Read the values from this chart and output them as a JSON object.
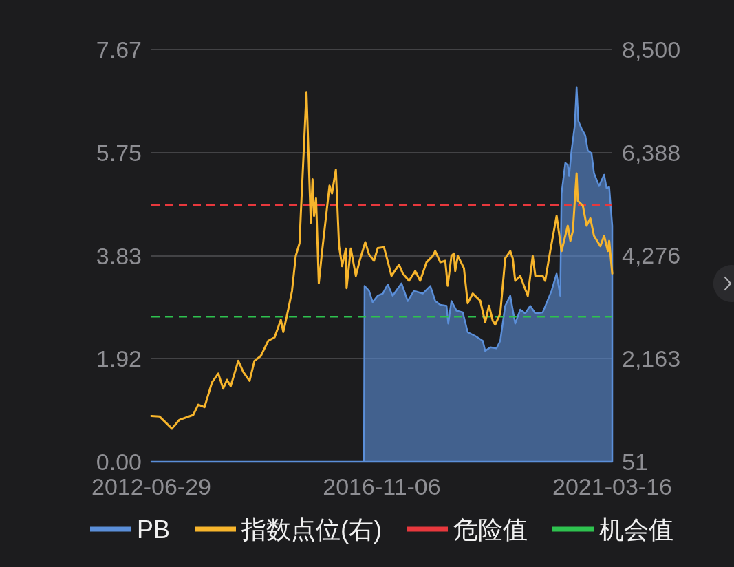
{
  "chart_data": {
    "type": "line",
    "series": [
      {
        "name": "PB",
        "type": "area",
        "color": "#5b8fd9",
        "axis": "y",
        "x": [
          "2012-06-29",
          "2016-07-06",
          "2016-07-10",
          "2016-08-10",
          "2016-09-04",
          "2016-10-09",
          "2016-11-13",
          "2016-12-17",
          "2017-01-20",
          "2017-03-22",
          "2017-05-04",
          "2017-06-16",
          "2017-08-16",
          "2017-10-07",
          "2017-11-10",
          "2017-12-15",
          "2018-01-27",
          "2018-02-08",
          "2018-03-02",
          "2018-04-06",
          "2018-05-19",
          "2018-06-22",
          "2018-08-13",
          "2018-10-04",
          "2018-10-21",
          "2018-11-25",
          "2019-01-07",
          "2019-02-02",
          "2019-03-08",
          "2019-04-12",
          "2019-05-16",
          "2019-06-20",
          "2019-07-24",
          "2019-08-28",
          "2019-10-02",
          "2019-11-22",
          "2019-12-18",
          "2020-01-22",
          "2020-02-26",
          "2020-03-22",
          "2020-03-31",
          "2020-04-26",
          "2020-05-13",
          "2020-05-22",
          "2020-06-08",
          "2020-06-30",
          "2020-07-13",
          "2020-07-25",
          "2020-08-16",
          "2020-09-11",
          "2020-09-28",
          "2020-10-24",
          "2020-11-10",
          "2020-12-15",
          "2021-01-19",
          "2021-02-05",
          "2021-02-23",
          "2021-03-16"
        ],
        "values": [
          0,
          0,
          3.27,
          3.18,
          2.97,
          3.09,
          3.13,
          3.3,
          3.09,
          3.32,
          2.99,
          3.18,
          3.13,
          3.27,
          2.99,
          2.92,
          2.9,
          2.57,
          2.99,
          2.81,
          2.78,
          2.41,
          2.34,
          2.25,
          2.06,
          2.13,
          2.11,
          2.25,
          2.9,
          3.09,
          2.57,
          2.83,
          2.76,
          2.9,
          2.76,
          2.78,
          2.95,
          3.18,
          3.5,
          3.09,
          4.99,
          5.56,
          5.52,
          5.32,
          5.79,
          6.25,
          6.97,
          6.34,
          6.2,
          6.07,
          5.79,
          5.74,
          5.37,
          5.13,
          5.34,
          5.09,
          5.11,
          4.39
        ]
      },
      {
        "name": "指数点位(右)",
        "type": "line",
        "color": "#f7b52c",
        "axis": "y2",
        "x": [
          "2012-06-29",
          "2012-08-24",
          "2012-11-18",
          "2013-01-09",
          "2013-04-14",
          "2013-05-19",
          "2013-07-01",
          "2013-08-22",
          "2013-10-04",
          "2013-11-07",
          "2013-12-03",
          "2013-12-29",
          "2014-02-19",
          "2014-03-26",
          "2014-05-08",
          "2014-06-11",
          "2014-07-25",
          "2014-09-14",
          "2014-10-28",
          "2014-12-10",
          "2014-12-27",
          "2015-01-30",
          "2015-02-25",
          "2015-03-23",
          "2015-04-18",
          "2015-04-27",
          "2015-06-05",
          "2015-07-05",
          "2015-07-17",
          "2015-07-27",
          "2015-08-10",
          "2015-08-29",
          "2015-09-21",
          "2015-11-11",
          "2015-11-28",
          "2015-12-25",
          "2016-01-16",
          "2016-02-06",
          "2016-03-03",
          "2016-03-08",
          "2016-04-06",
          "2016-05-11",
          "2016-06-06",
          "2016-07-15",
          "2016-08-10",
          "2016-09-13",
          "2016-10-09",
          "2016-11-21",
          "2016-12-26",
          "2017-01-12",
          "2017-03-05",
          "2017-03-31",
          "2017-05-13",
          "2017-06-25",
          "2017-07-29",
          "2017-09-11",
          "2017-10-24",
          "2017-11-10",
          "2017-12-15",
          "2018-01-18",
          "2018-02-04",
          "2018-03-02",
          "2018-03-19",
          "2018-03-28",
          "2018-04-15",
          "2018-05-27",
          "2018-06-22",
          "2018-07-27",
          "2018-09-17",
          "2018-10-21",
          "2018-11-16",
          "2018-12-12",
          "2018-12-29",
          "2019-02-02",
          "2019-03-08",
          "2019-04-12",
          "2019-04-29",
          "2019-05-16",
          "2019-06-20",
          "2019-08-11",
          "2019-09-14",
          "2019-10-02",
          "2019-11-22",
          "2019-12-09",
          "2020-01-13",
          "2020-02-26",
          "2020-03-31",
          "2020-05-13",
          "2020-05-31",
          "2020-06-17",
          "2020-07-13",
          "2020-07-21",
          "2020-08-25",
          "2020-09-20",
          "2020-10-16",
          "2020-11-10",
          "2020-12-24",
          "2021-01-19",
          "2021-02-14",
          "2021-02-23",
          "2021-03-16"
        ],
        "values": [
          990,
          980,
          730,
          910,
          1010,
          1220,
          1170,
          1680,
          1860,
          1550,
          1730,
          1600,
          2120,
          1890,
          1710,
          2120,
          2220,
          2530,
          2600,
          2960,
          2710,
          3170,
          3550,
          4270,
          4530,
          5140,
          7630,
          4940,
          5840,
          5090,
          5450,
          3710,
          4370,
          5710,
          5550,
          6040,
          4470,
          4060,
          4420,
          3610,
          4420,
          3860,
          4170,
          4550,
          4300,
          4170,
          4430,
          4450,
          4060,
          3860,
          4090,
          3910,
          3760,
          3960,
          3760,
          4140,
          4270,
          4370,
          4140,
          4170,
          3660,
          4270,
          4320,
          3960,
          4270,
          4020,
          3300,
          3500,
          3350,
          2910,
          3250,
          2940,
          2860,
          3090,
          4220,
          4370,
          4220,
          3760,
          3860,
          3450,
          4270,
          3860,
          3860,
          3760,
          4370,
          5090,
          4370,
          4890,
          4580,
          4780,
          5960,
          5400,
          5300,
          4890,
          5040,
          4680,
          4470,
          4680,
          4370,
          4580,
          3910
        ]
      }
    ],
    "xlim": [
      "2012-06-29",
      "2021-03-16"
    ],
    "xticks": [
      "2012-06-29",
      "2016-11-06",
      "2021-03-16"
    ],
    "ylim": [
      0,
      7.67
    ],
    "yticks": [
      {
        "value": 0,
        "label": "0.00"
      },
      1.92,
      3.83,
      5.75,
      7.67
    ],
    "y2lim": [
      51,
      8500
    ],
    "y2ticks": [
      51,
      {
        "value": 2163,
        "label": "2,163"
      },
      {
        "value": 4276,
        "label": "4,276"
      },
      {
        "value": 6388,
        "label": "6,388"
      },
      {
        "value": 8500,
        "label": "8,500"
      }
    ],
    "ref_lines": [
      {
        "axis": "y",
        "value": 4.78,
        "label": "危险值",
        "color": "#e8383d",
        "line_style": "dashed"
      },
      {
        "axis": "y",
        "value": 2.7,
        "label": "机会值",
        "color": "#2ec24f",
        "line_style": "dashed"
      }
    ],
    "grid": "y",
    "legend": "bottom",
    "line_style": "solid"
  }
}
